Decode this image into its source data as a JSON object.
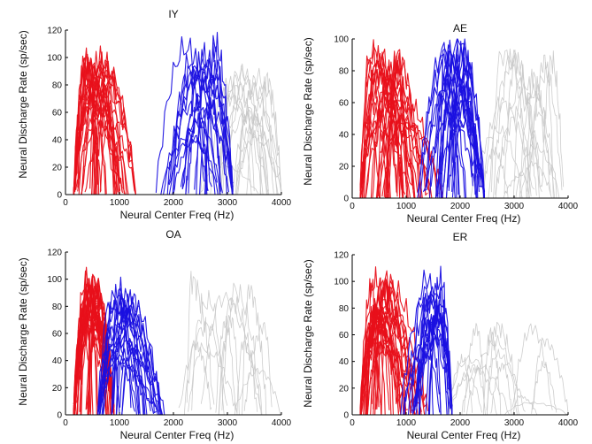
{
  "figure": {
    "colors": {
      "low": "#e8101a",
      "high": "#1a10e0",
      "other": "#c8c8c8"
    }
  },
  "chart_data": [
    {
      "type": "line",
      "title": "IY",
      "xlabel": "Neural Center Freq (Hz)",
      "ylabel": "Neural Discharge Rate (sp/sec)",
      "xlim": [
        0,
        4000
      ],
      "ylim": [
        0,
        120
      ],
      "xticks": [
        0,
        1000,
        2000,
        3000,
        4000
      ],
      "yticks": [
        0,
        20,
        40,
        60,
        80,
        100,
        120
      ],
      "groups": [
        {
          "color_key": "low",
          "count": 30,
          "x_range": [
            150,
            1300
          ],
          "peak_range": [
            40,
            101
          ],
          "peak_freq_range": [
            300,
            800
          ]
        },
        {
          "color_key": "high",
          "count": 22,
          "x_range": [
            1600,
            3100
          ],
          "peak_range": [
            40,
            114
          ],
          "peak_freq_range": [
            2200,
            2900
          ]
        },
        {
          "color_key": "other",
          "count": 18,
          "x_range": [
            2500,
            4000
          ],
          "peak_range": [
            10,
            90
          ],
          "peak_freq_range": [
            2800,
            3800
          ]
        }
      ]
    },
    {
      "type": "line",
      "title": "AE",
      "xlabel": "Neural Center Freq (Hz)",
      "ylabel": "Neural Discharge Rate (sp/sec)",
      "xlim": [
        0,
        4000
      ],
      "ylim": [
        0,
        100
      ],
      "xticks": [
        0,
        1000,
        2000,
        3000,
        4000
      ],
      "yticks": [
        0,
        20,
        40,
        60,
        80,
        100
      ],
      "groups": [
        {
          "color_key": "low",
          "count": 32,
          "x_range": [
            150,
            1800
          ],
          "peak_range": [
            40,
            92
          ],
          "peak_freq_range": [
            300,
            1000
          ]
        },
        {
          "color_key": "high",
          "count": 24,
          "x_range": [
            1150,
            2450
          ],
          "peak_range": [
            20,
            98
          ],
          "peak_freq_range": [
            1700,
            2200
          ]
        },
        {
          "color_key": "other",
          "count": 18,
          "x_range": [
            2200,
            4000
          ],
          "peak_range": [
            10,
            90
          ],
          "peak_freq_range": [
            2500,
            3800
          ]
        }
      ]
    },
    {
      "type": "line",
      "title": "OA",
      "xlabel": "Neural Center Freq (Hz)",
      "ylabel": "Neural Discharge Rate (sp/sec)",
      "xlim": [
        0,
        4000
      ],
      "ylim": [
        0,
        120
      ],
      "xticks": [
        0,
        1000,
        2000,
        3000,
        4000
      ],
      "yticks": [
        0,
        20,
        40,
        60,
        80,
        100,
        120
      ],
      "groups": [
        {
          "color_key": "low",
          "count": 30,
          "x_range": [
            150,
            900
          ],
          "peak_range": [
            60,
            99
          ],
          "peak_freq_range": [
            300,
            600
          ]
        },
        {
          "color_key": "high",
          "count": 24,
          "x_range": [
            600,
            1900
          ],
          "peak_range": [
            30,
            92
          ],
          "peak_freq_range": [
            800,
            1300
          ]
        },
        {
          "color_key": "other",
          "count": 14,
          "x_range": [
            1700,
            4000
          ],
          "peak_range": [
            5,
            108
          ],
          "peak_freq_range": [
            2300,
            3700
          ]
        }
      ]
    },
    {
      "type": "line",
      "title": "ER",
      "xlabel": "Neural Center Freq (Hz)",
      "ylabel": "Neural Discharge Rate (sp/sec)",
      "xlim": [
        0,
        4000
      ],
      "ylim": [
        0,
        120
      ],
      "xticks": [
        0,
        1000,
        2000,
        3000,
        4000
      ],
      "yticks": [
        0,
        20,
        40,
        60,
        80,
        100,
        120
      ],
      "groups": [
        {
          "color_key": "low",
          "count": 30,
          "x_range": [
            150,
            1400
          ],
          "peak_range": [
            40,
            103
          ],
          "peak_freq_range": [
            300,
            700
          ]
        },
        {
          "color_key": "high",
          "count": 20,
          "x_range": [
            900,
            1850
          ],
          "peak_range": [
            40,
            103
          ],
          "peak_freq_range": [
            1300,
            1650
          ]
        },
        {
          "color_key": "other",
          "count": 16,
          "x_range": [
            1600,
            4000
          ],
          "peak_range": [
            5,
            68
          ],
          "peak_freq_range": [
            1900,
            3800
          ]
        }
      ]
    }
  ]
}
